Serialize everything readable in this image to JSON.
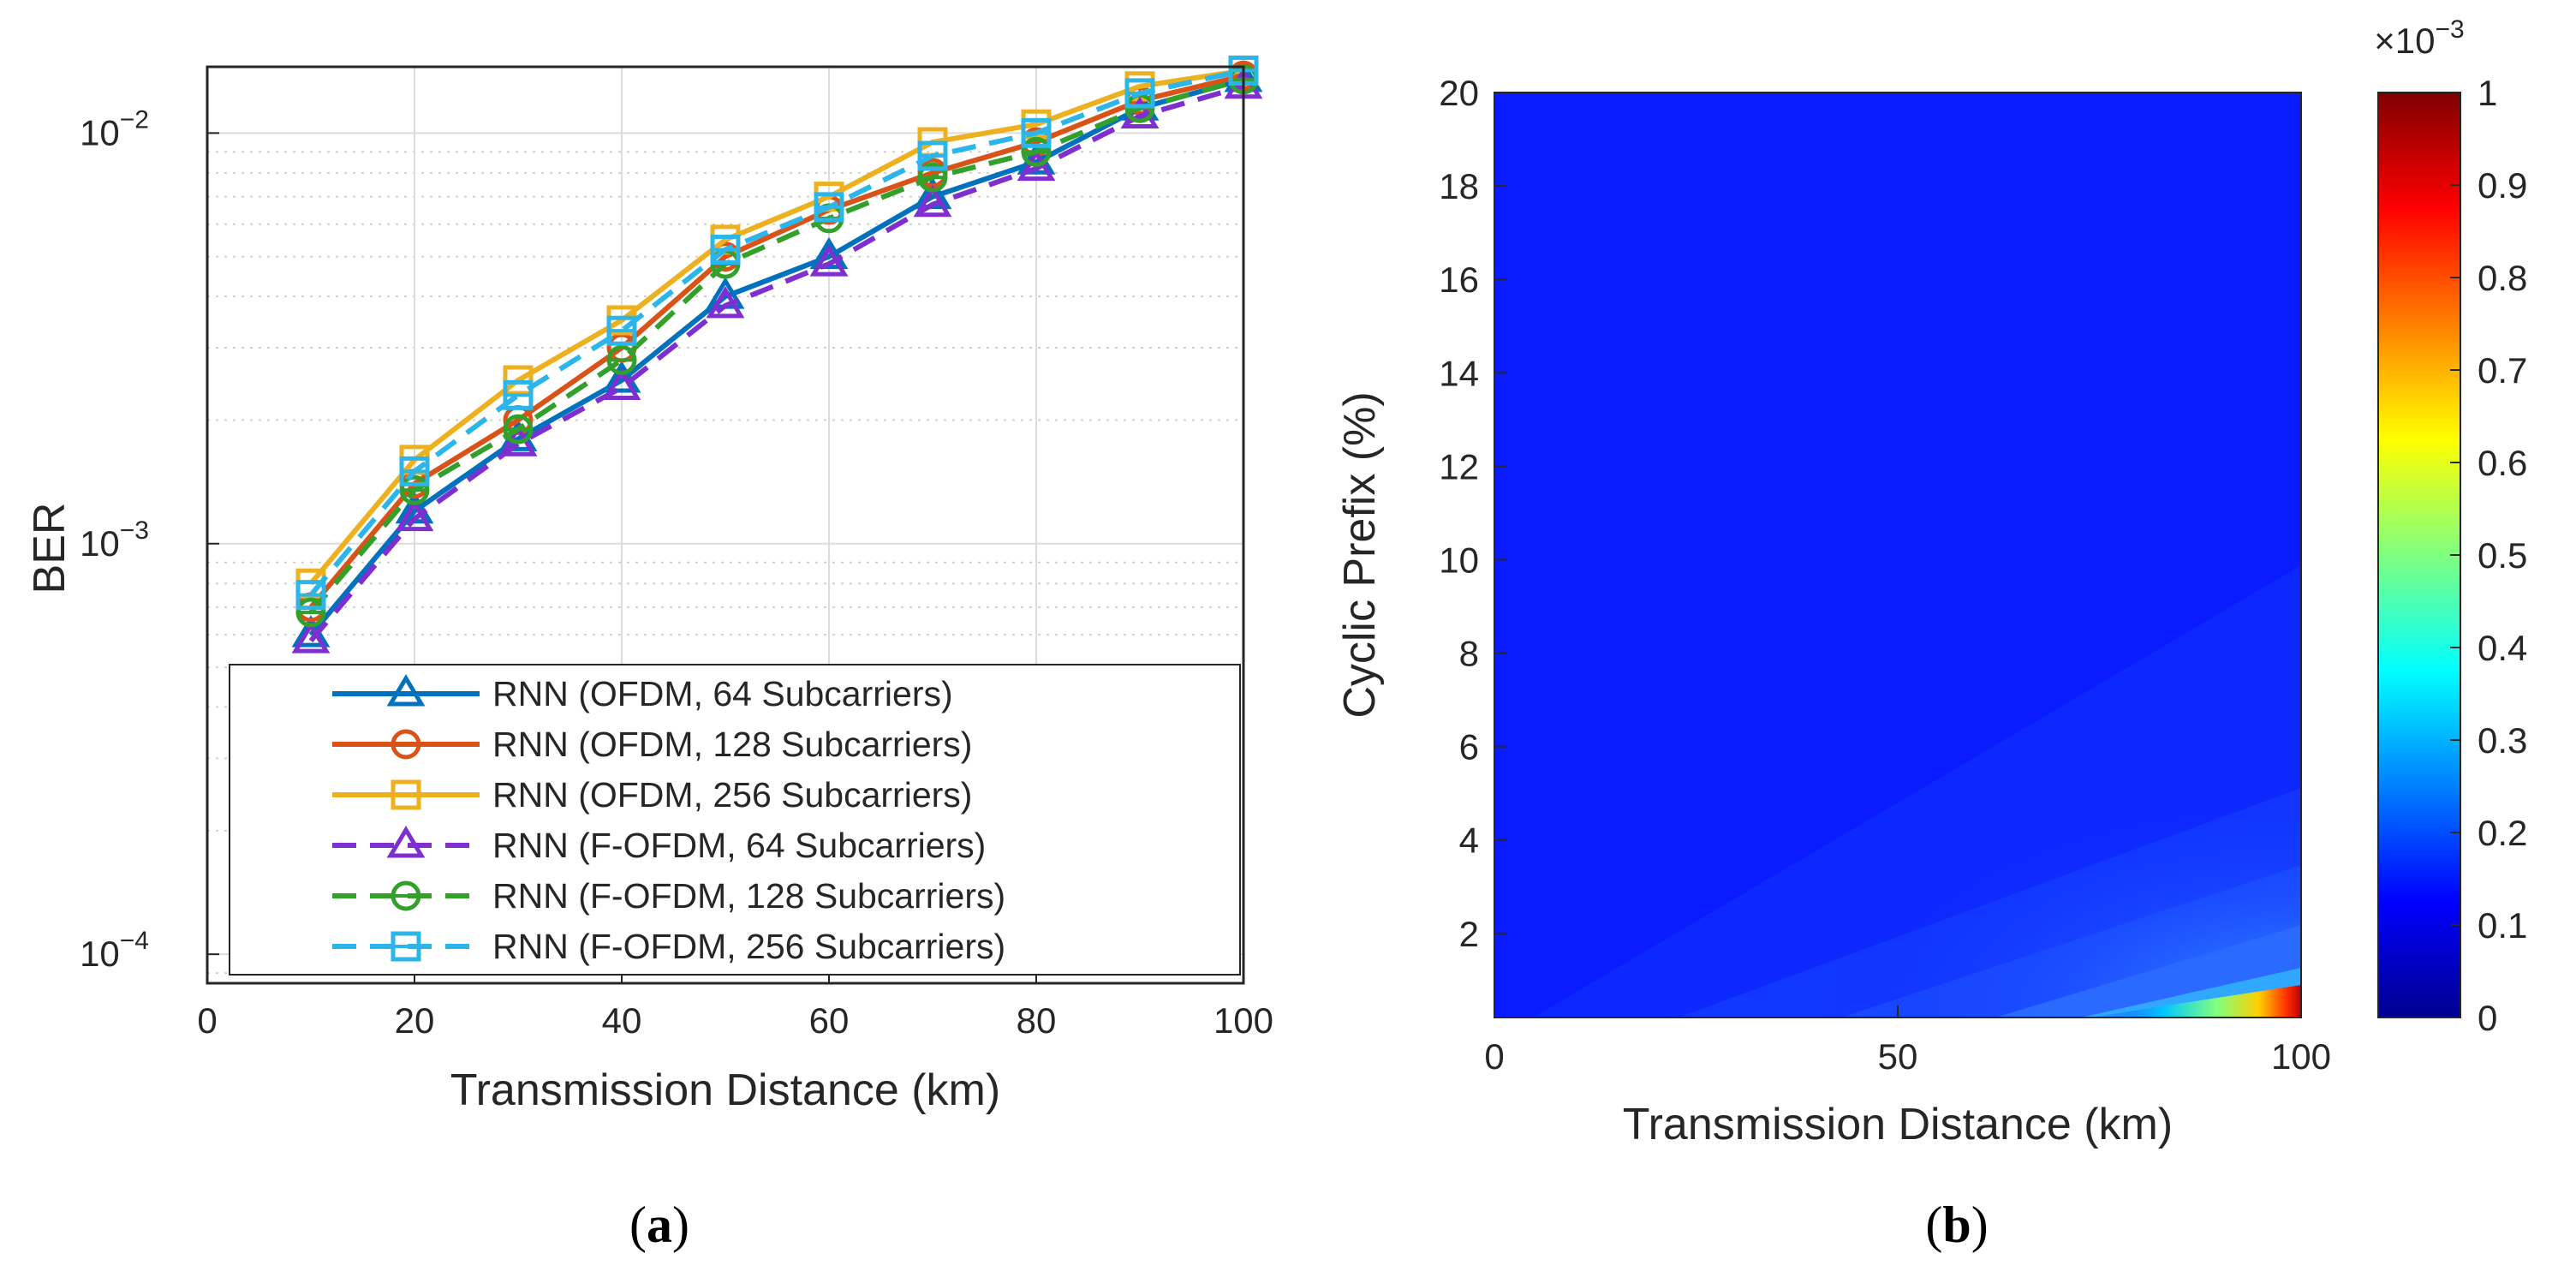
{
  "panels": {
    "a": {
      "caption_open": "(",
      "caption_letter": "a",
      "caption_close": ")"
    },
    "b": {
      "caption_open": "(",
      "caption_letter": "b",
      "caption_close": ")"
    }
  },
  "chart_data": [
    {
      "type": "line",
      "panel": "a",
      "title": "",
      "xlabel": "Transmission Distance (km)",
      "ylabel": "BER",
      "xlim": [
        0,
        100
      ],
      "ylim": [
        8.5e-05,
        0.0145
      ],
      "yscale": "log",
      "xticks": [
        0,
        20,
        40,
        60,
        80,
        100
      ],
      "xtick_labels": [
        "0",
        "20",
        "40",
        "60",
        "80",
        "100"
      ],
      "yticks": [
        0.0001,
        0.001,
        0.01
      ],
      "ytick_labels": [
        {
          "base": "10",
          "exp": "−4"
        },
        {
          "base": "10",
          "exp": "−3"
        },
        {
          "base": "10",
          "exp": "−2"
        }
      ],
      "grid": true,
      "legend_position": "bottom-right",
      "x": [
        10,
        20,
        30,
        40,
        50,
        60,
        70,
        80,
        90,
        100
      ],
      "series": [
        {
          "name": "RNN (OFDM, 64 Subcarriers)",
          "color": "#0072BD",
          "marker": "triangle",
          "dash": "solid",
          "values": [
            0.0006,
            0.0012,
            0.0018,
            0.0025,
            0.004,
            0.005,
            0.007,
            0.0085,
            0.0115,
            0.0135
          ]
        },
        {
          "name": "RNN (OFDM, 128 Subcarriers)",
          "color": "#D95319",
          "marker": "circle",
          "dash": "solid",
          "values": [
            0.0007,
            0.0014,
            0.002,
            0.003,
            0.005,
            0.0065,
            0.008,
            0.0095,
            0.012,
            0.0138
          ]
        },
        {
          "name": "RNN (OFDM, 256 Subcarriers)",
          "color": "#EDB120",
          "marker": "square",
          "dash": "solid",
          "values": [
            0.0008,
            0.0016,
            0.0025,
            0.0035,
            0.0055,
            0.007,
            0.0095,
            0.0105,
            0.013,
            0.0142
          ]
        },
        {
          "name": "RNN (F-OFDM, 64 Subcarriers)",
          "color": "#7E2FD0",
          "marker": "triangle",
          "dash": "dashed",
          "values": [
            0.00058,
            0.00115,
            0.00175,
            0.0024,
            0.0038,
            0.0048,
            0.0067,
            0.0082,
            0.011,
            0.013
          ]
        },
        {
          "name": "RNN (F-OFDM, 128 Subcarriers)",
          "color": "#33A02C",
          "marker": "circle-bar",
          "dash": "dashed",
          "values": [
            0.00068,
            0.00135,
            0.0019,
            0.0028,
            0.0048,
            0.0062,
            0.0078,
            0.009,
            0.0115,
            0.0135
          ]
        },
        {
          "name": "RNN (F-OFDM, 256 Subcarriers)",
          "color": "#2BB5E8",
          "marker": "square-bar",
          "dash": "dashed",
          "values": [
            0.00075,
            0.0015,
            0.0023,
            0.0033,
            0.0052,
            0.0066,
            0.0088,
            0.01,
            0.0125,
            0.0142
          ]
        }
      ]
    },
    {
      "type": "heatmap",
      "panel": "b",
      "title": "",
      "xlabel": "Transmission Distance (km)",
      "ylabel": "Cyclic Prefix (%)",
      "xlim": [
        0,
        100
      ],
      "ylim": [
        0.2,
        20
      ],
      "xticks": [
        0,
        50,
        100
      ],
      "yticks": [
        2,
        4,
        6,
        8,
        10,
        12,
        14,
        16,
        18,
        20
      ],
      "colormap": "jet",
      "clim": [
        0,
        0.001
      ],
      "colorbar_ticks": [
        0,
        0.1,
        0.2,
        0.3,
        0.4,
        0.5,
        0.6,
        0.7,
        0.8,
        0.9,
        1
      ],
      "colorbar_multiplier": "×10",
      "colorbar_multiplier_exp": "−3",
      "trend": "Values near 0.1e-3 across most of the plane, rising toward 1e-3 at 100 km and smallest cyclic prefix"
    }
  ]
}
